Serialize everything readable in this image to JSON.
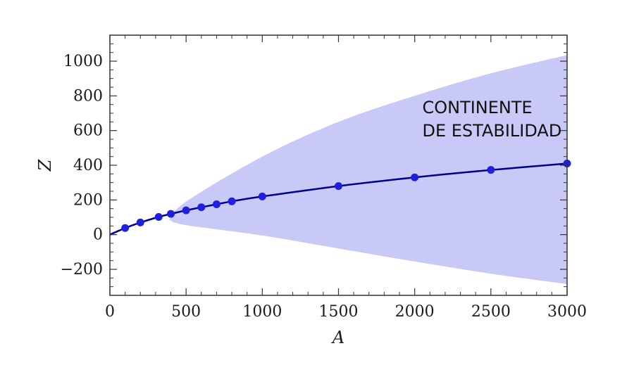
{
  "chart_data": {
    "type": "line",
    "title": "",
    "xlabel": "A",
    "ylabel": "Z",
    "xlim": [
      0,
      3000
    ],
    "ylim": [
      -350,
      1150
    ],
    "x_ticks": [
      0,
      500,
      1000,
      1500,
      2000,
      2500,
      3000
    ],
    "y_ticks": [
      -200,
      0,
      200,
      400,
      600,
      800,
      1000
    ],
    "x_tick_labels": [
      "0",
      "500",
      "1000",
      "1500",
      "2000",
      "2500",
      "3000"
    ],
    "y_tick_labels": [
      "−200",
      "0",
      "200",
      "400",
      "600",
      "800",
      "1000"
    ],
    "grid": false,
    "band": {
      "color": "#c9c9f7",
      "x": [
        390,
        500,
        1000,
        1500,
        2000,
        2500,
        3000
      ],
      "upper": [
        85,
        190,
        450,
        650,
        800,
        930,
        1035
      ],
      "lower": [
        85,
        55,
        -5,
        -80,
        -155,
        -225,
        -285
      ]
    },
    "curve": {
      "color": "#00008b",
      "x": [
        0,
        100,
        200,
        320,
        400,
        500,
        600,
        700,
        800,
        1000,
        1500,
        2000,
        2500,
        3000
      ],
      "y": [
        0,
        38,
        70,
        102,
        120,
        140,
        158,
        175,
        192,
        220,
        280,
        330,
        373,
        410
      ]
    },
    "points": {
      "color": "#1f1fe0",
      "x": [
        100,
        200,
        320,
        400,
        500,
        600,
        700,
        800,
        1000,
        1500,
        2000,
        2500,
        3000
      ],
      "y": [
        38,
        70,
        102,
        120,
        140,
        158,
        175,
        192,
        220,
        280,
        330,
        373,
        410
      ]
    },
    "annotation": {
      "lines": [
        "CONTINENTE",
        "DE ESTABILIDAD"
      ],
      "x": 2050,
      "y": 700
    }
  }
}
